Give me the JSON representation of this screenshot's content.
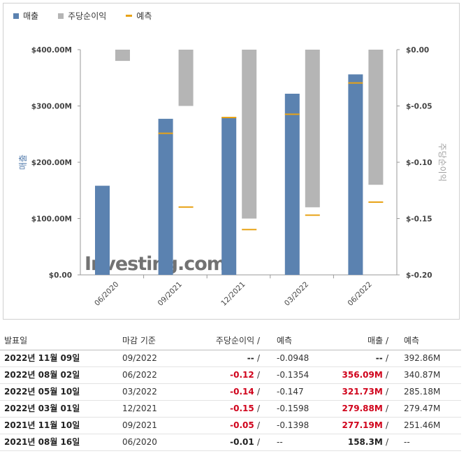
{
  "legend": {
    "revenue": "매출",
    "eps": "주당순이익",
    "forecast": "예측"
  },
  "colors": {
    "revenue": "#5b82b0",
    "eps": "#b5b5b5",
    "forecast": "#e8a317",
    "negative": "#d0021b"
  },
  "chart_data": {
    "type": "bar",
    "categories": [
      "06/2020",
      "09/2021",
      "12/2021",
      "03/2022",
      "06/2022"
    ],
    "series": [
      {
        "name": "매출",
        "axis": "left",
        "values": [
          158.3,
          277.19,
          279.88,
          321.73,
          356.09
        ]
      },
      {
        "name": "주당순이익",
        "axis": "right",
        "values": [
          -0.01,
          -0.05,
          -0.15,
          -0.14,
          -0.12
        ]
      },
      {
        "name": "예측",
        "axis": "left",
        "values": [
          null,
          251.46,
          279.47,
          285.18,
          340.87
        ]
      },
      {
        "name": "예측",
        "axis": "right",
        "values": [
          null,
          -0.1398,
          -0.1598,
          -0.147,
          -0.1354
        ]
      }
    ],
    "y_left": {
      "label": "매출",
      "ticks": [
        "$0.00",
        "$100.00M",
        "$200.00M",
        "$300.00M",
        "$400.00M"
      ],
      "ylim": [
        0,
        400
      ]
    },
    "y_right": {
      "label": "주당순이익",
      "ticks": [
        "$0.00",
        "$-0.05",
        "$-0.10",
        "$-0.15",
        "$-0.20"
      ],
      "ylim": [
        -0.2,
        0
      ]
    },
    "watermark": "Investing.com",
    "legend_position": "top-left"
  },
  "table": {
    "headers": {
      "date": "발표일",
      "period": "마감 기준",
      "eps": "주당순이익",
      "eps_forecast": "예측",
      "revenue": "매출",
      "revenue_forecast": "예측",
      "slash": "/"
    },
    "rows": [
      {
        "date": "2022년 11월 09일",
        "period": "09/2022",
        "eps": "--",
        "eps_forecast": "-0.0948",
        "revenue": "--",
        "revenue_forecast": "392.86M",
        "eps_class": "blk",
        "rev_class": "blk"
      },
      {
        "date": "2022년 08월 02일",
        "period": "06/2022",
        "eps": "-0.12",
        "eps_forecast": "-0.1354",
        "revenue": "356.09M",
        "revenue_forecast": "340.87M",
        "eps_class": "red",
        "rev_class": "red"
      },
      {
        "date": "2022년 05월 10일",
        "period": "03/2022",
        "eps": "-0.14",
        "eps_forecast": "-0.147",
        "revenue": "321.73M",
        "revenue_forecast": "285.18M",
        "eps_class": "red",
        "rev_class": "red"
      },
      {
        "date": "2022년 03월 01일",
        "period": "12/2021",
        "eps": "-0.15",
        "eps_forecast": "-0.1598",
        "revenue": "279.88M",
        "revenue_forecast": "279.47M",
        "eps_class": "red",
        "rev_class": "red"
      },
      {
        "date": "2021년 11월 10일",
        "period": "09/2021",
        "eps": "-0.05",
        "eps_forecast": "-0.1398",
        "revenue": "277.19M",
        "revenue_forecast": "251.46M",
        "eps_class": "red",
        "rev_class": "red"
      },
      {
        "date": "2021년 08월 16일",
        "period": "06/2020",
        "eps": "-0.01",
        "eps_forecast": "--",
        "revenue": "158.3M",
        "revenue_forecast": "--",
        "eps_class": "blk",
        "rev_class": "blk"
      }
    ]
  }
}
